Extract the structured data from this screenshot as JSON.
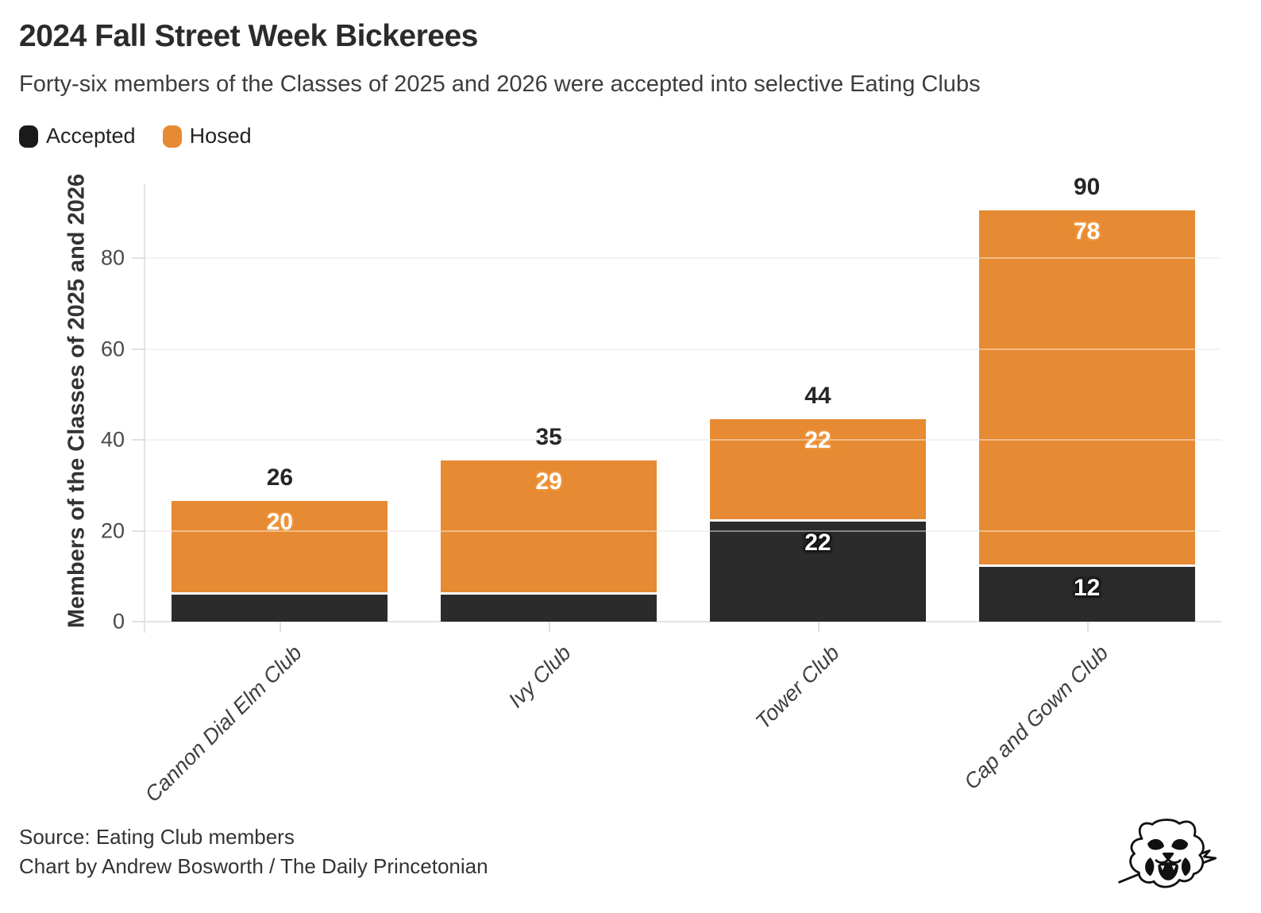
{
  "header": {
    "title": "2024 Fall Street Week Bickerees",
    "subtitle": "Forty-six members of the Classes of 2025 and 2026 were accepted into selective Eating Clubs"
  },
  "legend": [
    {
      "label": "Accepted",
      "color": "#1a1a1a"
    },
    {
      "label": "Hosed",
      "color": "#e68a33"
    }
  ],
  "chart_data": {
    "type": "bar",
    "stacked": true,
    "title": "2024 Fall Street Week Bickerees",
    "subtitle": "Forty-six members of the Classes of 2025 and 2026 were accepted into selective Eating Clubs",
    "xlabel": "",
    "ylabel": "Members of the Classes of 2025 and 2026",
    "categories": [
      "Cannon Dial Elm Club",
      "Ivy Club",
      "Tower Club",
      "Cap and Gown Club"
    ],
    "series": [
      {
        "name": "Accepted",
        "values": [
          6,
          6,
          22,
          12
        ],
        "color": "#2b2b2b"
      },
      {
        "name": "Hosed",
        "values": [
          20,
          29,
          22,
          78
        ],
        "color": "#e68a33"
      }
    ],
    "totals": [
      26,
      35,
      44,
      90
    ],
    "segment_labels": {
      "Accepted": [
        "",
        "",
        "22",
        "12"
      ],
      "Hosed": [
        "20",
        "29",
        "22",
        "78"
      ]
    },
    "yticks": [
      0,
      20,
      40,
      60,
      80
    ],
    "ylim": [
      0,
      96
    ],
    "grid": "horizontal",
    "legend_position": "top-left"
  },
  "footer": {
    "source": "Source: Eating Club members",
    "credit": "Chart by Andrew Bosworth / The Daily Princetonian",
    "logo": "daily-princetonian-tiger"
  }
}
